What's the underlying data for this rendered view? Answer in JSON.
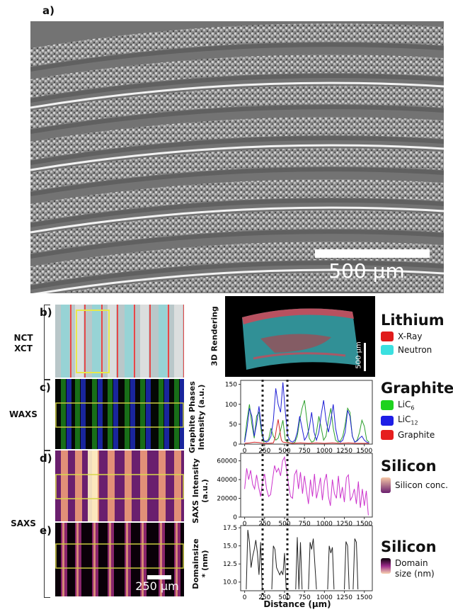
{
  "panel_a": {
    "label": "a)",
    "scale_bar": "500 µm"
  },
  "panel_b": {
    "label": "b)",
    "side_label_line1": "NCT",
    "side_label_line2": "XCT"
  },
  "panel_c": {
    "label": "c)",
    "side_label": "WAXS"
  },
  "panel_d": {
    "label": "d)"
  },
  "panel_e": {
    "label": "e)",
    "scale_bar": "250 µm"
  },
  "saxs_group_label": "SAXS",
  "rendering": {
    "side_label": "3D Rendering",
    "scale_bar": "500 µm"
  },
  "legends": {
    "lithium": {
      "title": "Lithium",
      "items": [
        {
          "label": "X-Ray",
          "color": "#e01b1b"
        },
        {
          "label": "Neutron",
          "color": "#3be0e0"
        }
      ]
    },
    "graphite": {
      "title": "Graphite",
      "items": [
        {
          "label": "LiC",
          "sub": "6",
          "color": "#1ed21e"
        },
        {
          "label": "LiC",
          "sub": "12",
          "color": "#1e1ee6"
        },
        {
          "label": "Graphite",
          "sub": "",
          "color": "#e61e1e"
        }
      ]
    },
    "silicon1": {
      "title": "Silicon",
      "item": "Silicon conc."
    },
    "silicon2": {
      "title": "Silicon",
      "item": "Domain size (nm)"
    }
  },
  "x_axis_label": "Distance (µm)",
  "chart_data": [
    {
      "type": "line",
      "ylabel_line1": "Graphite Phases",
      "ylabel_line2": "Intensity (a.u.)",
      "xlim": [
        -50,
        1600
      ],
      "ylim": [
        0,
        160
      ],
      "xticks": [
        0,
        250,
        500,
        750,
        1000,
        1250,
        1500
      ],
      "yticks": [
        0,
        50,
        100,
        150
      ],
      "series": [
        {
          "color": "#2ca02c",
          "x": [
            0,
            30,
            60,
            90,
            120,
            150,
            180,
            210,
            240,
            270,
            300,
            330,
            360,
            390,
            420,
            450,
            480,
            510,
            540,
            570,
            600,
            630,
            660,
            690,
            720,
            750,
            780,
            810,
            840,
            870,
            900,
            930,
            960,
            990,
            1020,
            1050,
            1080,
            1110,
            1140,
            1170,
            1200,
            1230,
            1260,
            1290,
            1320,
            1350,
            1380,
            1410,
            1440,
            1470,
            1500,
            1530,
            1560
          ],
          "y": [
            10,
            60,
            100,
            50,
            15,
            70,
            80,
            30,
            5,
            8,
            12,
            40,
            20,
            10,
            15,
            35,
            60,
            10,
            5,
            3,
            2,
            5,
            20,
            60,
            90,
            110,
            60,
            15,
            5,
            8,
            30,
            70,
            40,
            10,
            20,
            60,
            90,
            40,
            10,
            5,
            8,
            20,
            50,
            90,
            80,
            20,
            5,
            10,
            30,
            60,
            45,
            10,
            5
          ]
        },
        {
          "color": "#1f1fd6",
          "x": [
            0,
            30,
            60,
            90,
            120,
            150,
            180,
            210,
            240,
            270,
            300,
            330,
            360,
            390,
            420,
            450,
            480,
            510,
            540,
            570,
            600,
            630,
            660,
            690,
            720,
            750,
            780,
            810,
            840,
            870,
            900,
            930,
            960,
            990,
            1020,
            1050,
            1080,
            1110,
            1140,
            1170,
            1200,
            1230,
            1260,
            1290,
            1320,
            1350,
            1380,
            1410,
            1440,
            1470,
            1500,
            1530,
            1560
          ],
          "y": [
            5,
            40,
            90,
            70,
            20,
            50,
            95,
            40,
            10,
            5,
            8,
            20,
            60,
            140,
            100,
            80,
            155,
            80,
            20,
            8,
            5,
            10,
            30,
            70,
            40,
            10,
            20,
            40,
            80,
            30,
            10,
            30,
            75,
            110,
            60,
            30,
            60,
            100,
            40,
            10,
            5,
            10,
            30,
            85,
            70,
            20,
            5,
            8,
            15,
            20,
            10,
            5,
            3
          ]
        },
        {
          "color": "#d62728",
          "x": [
            0,
            60,
            120,
            180,
            240,
            300,
            360,
            380,
            400,
            420,
            440,
            460,
            480,
            520,
            560,
            600,
            700,
            800,
            900,
            1000,
            1100,
            1200,
            1300,
            1400,
            1500,
            1560
          ],
          "y": [
            2,
            3,
            5,
            4,
            2,
            2,
            3,
            15,
            40,
            62,
            35,
            10,
            5,
            4,
            3,
            2,
            3,
            2,
            3,
            2,
            3,
            2,
            3,
            2,
            2,
            2
          ]
        }
      ]
    },
    {
      "type": "line",
      "ylabel_line1": "SAXS Intensity",
      "ylabel_line2": "(a.u.)",
      "xlim": [
        -50,
        1600
      ],
      "ylim": [
        0,
        68000
      ],
      "xticks": [
        0,
        250,
        500,
        750,
        1000,
        1250,
        1500
      ],
      "yticks": [
        0,
        20000,
        40000,
        60000
      ],
      "series": [
        {
          "color": "#cc33cc",
          "x": [
            0,
            25,
            50,
            75,
            100,
            125,
            150,
            175,
            200,
            225,
            250,
            275,
            300,
            325,
            350,
            375,
            400,
            425,
            450,
            475,
            500,
            525,
            550,
            575,
            600,
            625,
            650,
            675,
            700,
            725,
            750,
            775,
            800,
            825,
            850,
            875,
            900,
            925,
            950,
            975,
            1000,
            1025,
            1050,
            1075,
            1100,
            1125,
            1150,
            1175,
            1200,
            1225,
            1250,
            1275,
            1300,
            1325,
            1350,
            1375,
            1400,
            1425,
            1450,
            1475,
            1500,
            1525,
            1550
          ],
          "y": [
            30000,
            52000,
            40000,
            50000,
            35000,
            30000,
            45000,
            32000,
            22000,
            38000,
            46000,
            30000,
            22000,
            24000,
            40000,
            55000,
            48000,
            52000,
            44000,
            60000,
            64000,
            50000,
            35000,
            22000,
            20000,
            45000,
            50000,
            30000,
            48000,
            25000,
            44000,
            28000,
            14000,
            40000,
            22000,
            46000,
            20000,
            30000,
            42000,
            18000,
            38000,
            46000,
            22000,
            12000,
            40000,
            25000,
            20000,
            44000,
            20000,
            32000,
            16000,
            42000,
            45000,
            18000,
            22000,
            30000,
            14000,
            38000,
            10000,
            30000,
            12000,
            28000,
            2000
          ]
        }
      ]
    },
    {
      "type": "line",
      "ylabel_line1": "Domainsize",
      "ylabel_line2": "(nm)",
      "ylabel_prefix": "*",
      "xlim": [
        -50,
        1600
      ],
      "ylim": [
        8.8,
        17.8
      ],
      "xticks": [
        0,
        250,
        500,
        750,
        1000,
        1250,
        1500
      ],
      "yticks": [
        10.0,
        12.5,
        15.0,
        17.5
      ],
      "segments": [
        {
          "x": [
            20,
            40,
            60,
            80,
            100,
            120,
            140,
            160,
            180,
            200,
            220
          ],
          "y": [
            9.0,
            17.2,
            15.5,
            12.0,
            13.5,
            14.5,
            15.8,
            14.0,
            11.0,
            15.5,
            9.0
          ]
        },
        {
          "x": [
            340,
            360,
            380,
            400,
            420,
            440,
            460,
            480,
            500,
            520
          ],
          "y": [
            9.0,
            15.0,
            14.5,
            12.0,
            11.5,
            11.0,
            11.5,
            11.0,
            14.0,
            9.0
          ]
        },
        {
          "x": [
            640,
            660,
            680,
            700,
            720
          ],
          "y": [
            9.0,
            16.2,
            9.0,
            15.5,
            9.0
          ]
        },
        {
          "x": [
            800,
            820,
            840,
            860,
            880,
            900
          ],
          "y": [
            9.0,
            15.5,
            14.5,
            16.0,
            12.5,
            9.0
          ]
        },
        {
          "x": [
            1040,
            1060,
            1080,
            1100,
            1120
          ],
          "y": [
            9.0,
            15.0,
            14.0,
            14.8,
            9.0
          ]
        },
        {
          "x": [
            1250,
            1270,
            1290,
            1310
          ],
          "y": [
            9.0,
            15.6,
            15.0,
            9.0
          ]
        },
        {
          "x": [
            1360,
            1380,
            1400,
            1420
          ],
          "y": [
            9.0,
            16.0,
            15.5,
            9.0
          ]
        }
      ],
      "series_color": "#222222"
    }
  ]
}
